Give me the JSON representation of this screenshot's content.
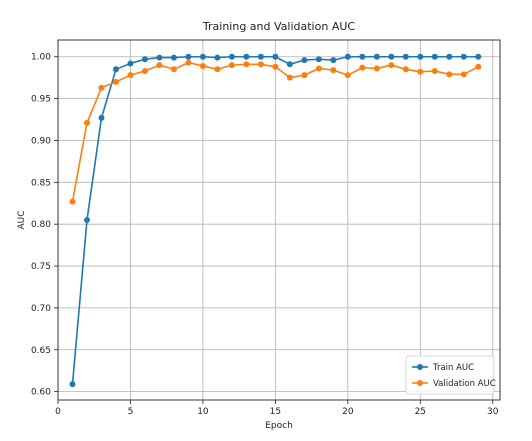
{
  "chart_data": {
    "type": "line",
    "title": "Training and Validation AUC",
    "xlabel": "Epoch",
    "ylabel": "AUC",
    "xlim": [
      0,
      30.5
    ],
    "ylim": [
      0.59,
      1.02
    ],
    "xticks": [
      0,
      5,
      10,
      15,
      20,
      25,
      30
    ],
    "yticks": [
      0.6,
      0.65,
      0.7,
      0.75,
      0.8,
      0.85,
      0.9,
      0.95,
      1.0
    ],
    "grid": true,
    "legend_position": "bottom-right",
    "x": [
      1,
      2,
      3,
      4,
      5,
      6,
      7,
      8,
      9,
      10,
      11,
      12,
      13,
      14,
      15,
      16,
      17,
      18,
      19,
      20,
      21,
      22,
      23,
      24,
      25,
      26,
      27,
      28,
      29
    ],
    "series": [
      {
        "name": "Train AUC",
        "color": "#1f77b4",
        "values": [
          0.609,
          0.805,
          0.927,
          0.985,
          0.992,
          0.997,
          0.999,
          0.999,
          1.0,
          1.0,
          0.999,
          1.0,
          1.0,
          1.0,
          1.0,
          0.991,
          0.996,
          0.997,
          0.996,
          1.0,
          1.0,
          1.0,
          1.0,
          1.0,
          1.0,
          1.0,
          1.0,
          1.0,
          1.0
        ]
      },
      {
        "name": "Validation AUC",
        "color": "#ff7f0e",
        "values": [
          0.827,
          0.921,
          0.963,
          0.97,
          0.978,
          0.983,
          0.99,
          0.985,
          0.993,
          0.989,
          0.985,
          0.99,
          0.991,
          0.991,
          0.988,
          0.975,
          0.978,
          0.986,
          0.984,
          0.978,
          0.987,
          0.986,
          0.99,
          0.985,
          0.982,
          0.983,
          0.979,
          0.979,
          0.988
        ]
      }
    ]
  }
}
